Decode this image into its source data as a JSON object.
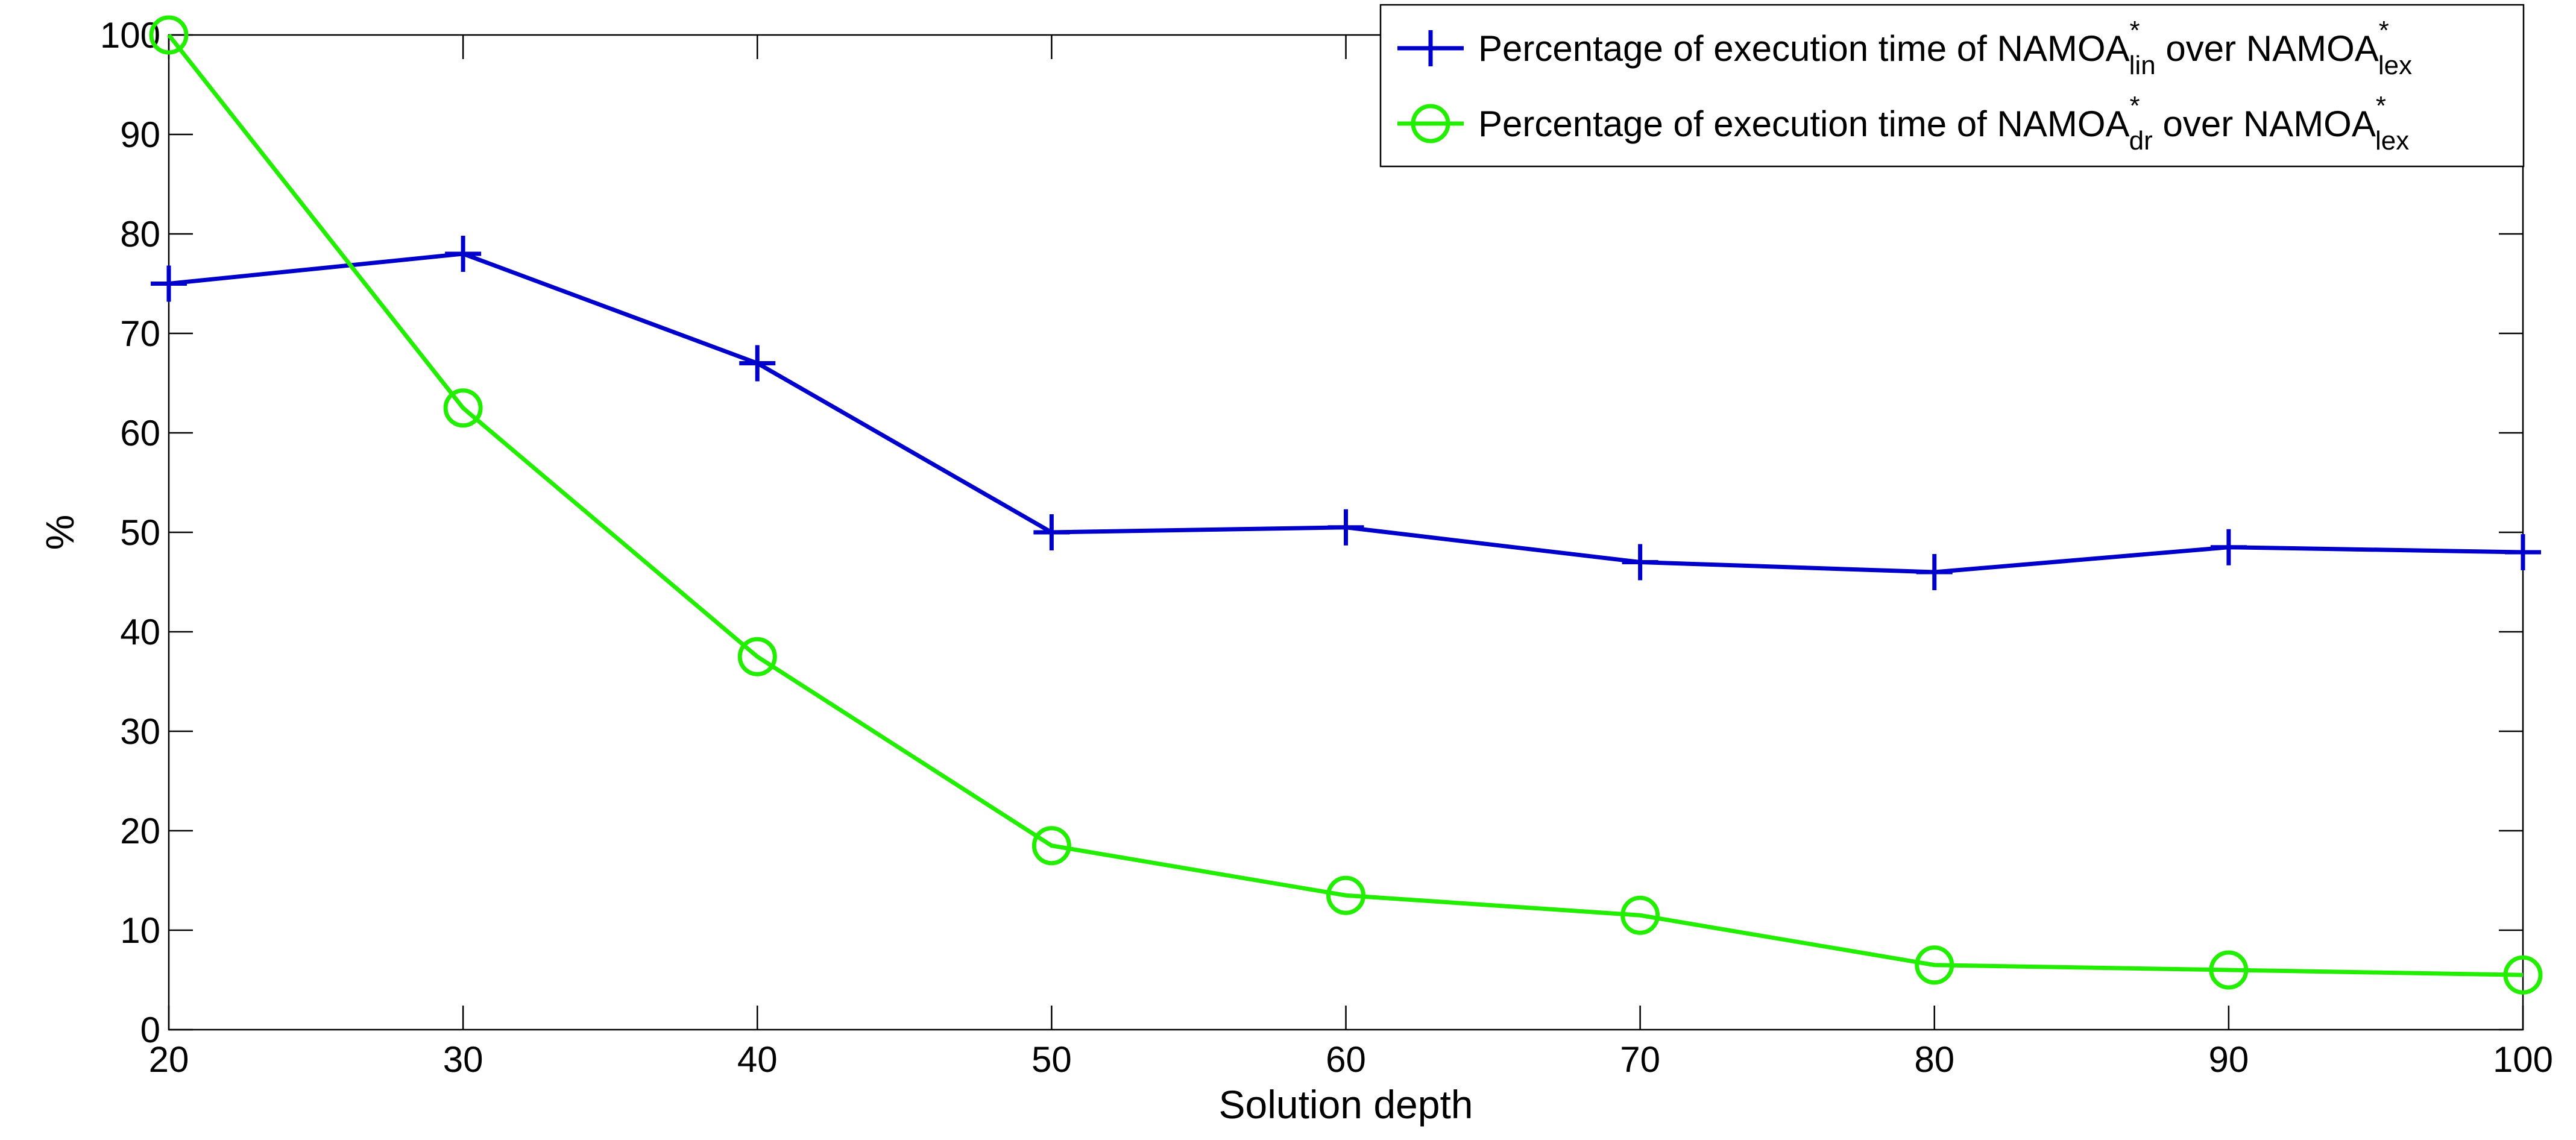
{
  "chart_data": {
    "type": "line",
    "title": "",
    "xlabel": "Solution depth",
    "ylabel": "%",
    "x": [
      20,
      30,
      40,
      50,
      60,
      70,
      80,
      90,
      100
    ],
    "xlim": [
      20,
      100
    ],
    "ylim": [
      0,
      100
    ],
    "xticks": [
      "20",
      "30",
      "40",
      "50",
      "60",
      "70",
      "80",
      "90",
      "100"
    ],
    "yticks": [
      "0",
      "10",
      "20",
      "30",
      "40",
      "50",
      "60",
      "70",
      "80",
      "90",
      "100"
    ],
    "grid": false,
    "legend_position": "top-right",
    "series": [
      {
        "name": "Percentage of execution time of NAMOA*lin over NAMOA*lex",
        "legend": {
          "prefix": "Percentage of execution time of NAMOA",
          "sup1": "*",
          "sub1": "lin",
          "middle": " over NAMOA",
          "sup2": "*",
          "sub2": "lex"
        },
        "color": "#0000cc",
        "marker": "plus",
        "values": [
          75,
          78,
          67,
          50,
          50.5,
          47,
          46,
          48.5,
          48
        ]
      },
      {
        "name": "Percentage of execution time of NAMOA*dr over NAMOA*lex",
        "legend": {
          "prefix": "Percentage of execution time of NAMOA",
          "sup1": "*",
          "sub1": "dr",
          "middle": "  over NAMOA",
          "sup2": "*",
          "sub2": "lex"
        },
        "color": "#22ee00",
        "marker": "circle",
        "values": [
          100,
          62.5,
          37.5,
          18.5,
          13.5,
          11.5,
          6.5,
          6,
          5.5
        ]
      }
    ]
  }
}
